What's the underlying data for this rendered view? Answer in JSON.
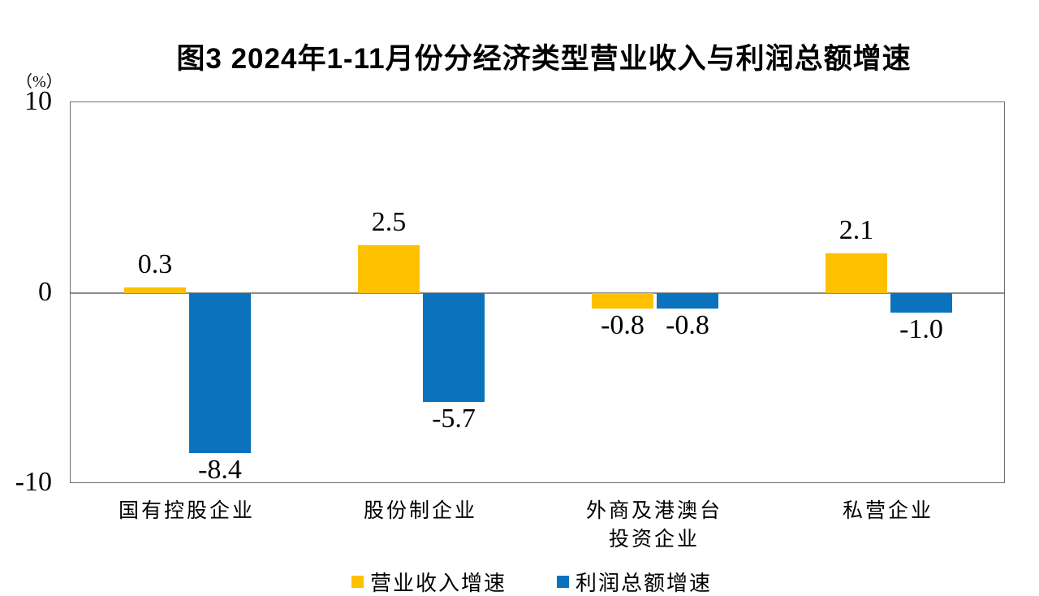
{
  "chart_data": {
    "type": "bar",
    "title": "图3  2024年1-11月份分经济类型营业收入与利润总额增速",
    "unit_label": "（%）",
    "categories": [
      "国有控股企业",
      "股份制企业",
      "外商及港澳台\n投资企业",
      "私营企业"
    ],
    "series": [
      {
        "name": "营业收入增速",
        "color": "#FFC000",
        "values": [
          0.3,
          2.5,
          -0.8,
          2.1
        ],
        "labels": [
          "0.3",
          "2.5",
          "-0.8",
          "2.1"
        ]
      },
      {
        "name": "利润总额增速",
        "color": "#0B72BE",
        "values": [
          -8.4,
          -5.7,
          -0.8,
          -1.0
        ],
        "labels": [
          "-8.4",
          "-5.7",
          "-0.8",
          "-1.0"
        ]
      }
    ],
    "ylim": [
      -10,
      10
    ],
    "yticks": [
      "10",
      "0",
      "-10"
    ],
    "grid": false,
    "legend_position": "bottom",
    "axis_color": "#6e6e6e",
    "zero_line_color": "#8c8c8c"
  }
}
